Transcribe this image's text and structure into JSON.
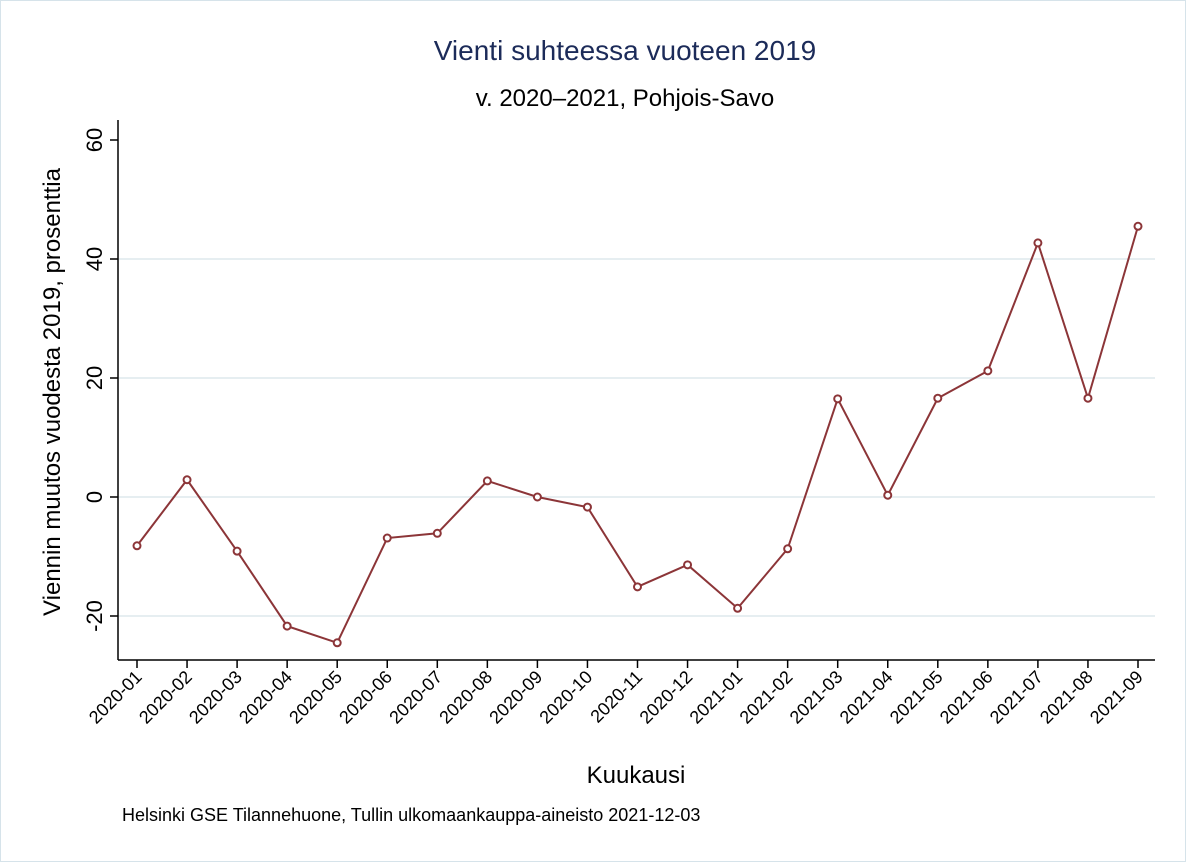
{
  "chart_data": {
    "type": "line",
    "title": "Vienti suhteessa vuoteen 2019",
    "subtitle": "v. 2020–2021, Pohjois-Savo",
    "xlabel": "Kuukausi",
    "ylabel": "Viennin muutos vuodesta 2019, prosenttia",
    "note": "Helsinki GSE Tilannehuone, Tullin ulkomaankauppa-aineisto 2021-12-03",
    "ylim": [
      -27,
      63
    ],
    "yticks": [
      -20,
      0,
      20,
      40,
      60
    ],
    "grid": true,
    "categories": [
      "2020-01",
      "2020-02",
      "2020-03",
      "2020-04",
      "2020-05",
      "2020-06",
      "2020-07",
      "2020-08",
      "2020-09",
      "2020-10",
      "2020-11",
      "2020-12",
      "2021-01",
      "2021-02",
      "2021-03",
      "2021-04",
      "2021-05",
      "2021-06",
      "2021-07",
      "2021-08",
      "2021-09"
    ],
    "series": [
      {
        "name": "Pohjois-Savo",
        "color": "#8c3538",
        "values": [
          -8.2,
          2.9,
          -9.1,
          -21.7,
          -24.5,
          -6.9,
          -6.1,
          2.7,
          0.0,
          -1.7,
          -15.1,
          -11.4,
          -18.7,
          -8.7,
          16.5,
          0.3,
          16.6,
          21.2,
          42.7,
          16.6,
          45.5
        ]
      }
    ],
    "colors": {
      "title": "#1c2b59",
      "grid": "#e6eef1",
      "axis": "#000000"
    }
  }
}
